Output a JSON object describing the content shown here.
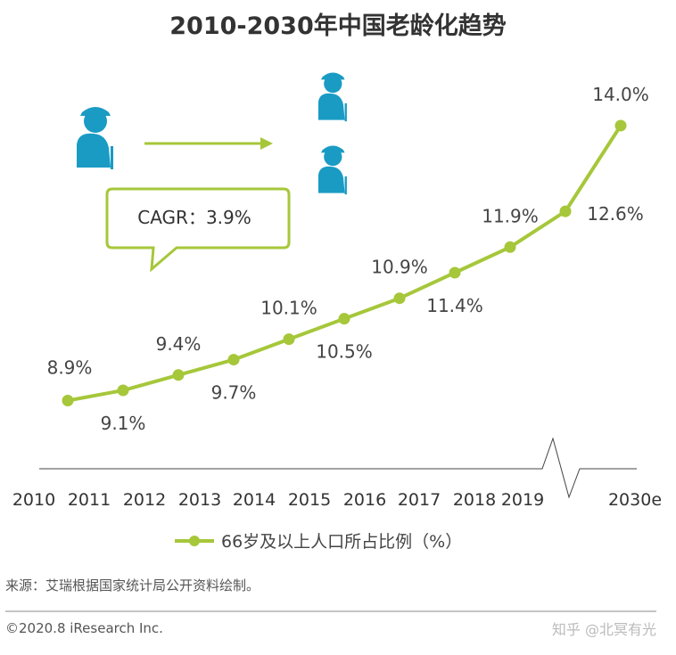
{
  "chart_data": {
    "type": "line",
    "title": "2010-2030年中国老龄化趋势",
    "categories": [
      "2010",
      "2011",
      "2012",
      "2013",
      "2014",
      "2015",
      "2016",
      "2017",
      "2018",
      "2019",
      "2030e"
    ],
    "series": [
      {
        "name": "66岁及以上人口所占比例（%）",
        "values": [
          8.9,
          9.1,
          9.4,
          9.7,
          10.1,
          10.5,
          10.9,
          11.4,
          11.9,
          12.6,
          14.0
        ],
        "labels": [
          "8.9%",
          "9.1%",
          "9.4%",
          "9.7%",
          "10.1%",
          "10.5%",
          "10.9%",
          "11.4%",
          "11.9%",
          "12.6%",
          "14.0%"
        ]
      }
    ],
    "annotation": "CAGR：3.9%",
    "axis_break": "between 2019 and 2030e",
    "grid": false,
    "legend": "bottom-center",
    "line_color": "#a6c73a",
    "icon_color": "#1a9bc4"
  },
  "footer": {
    "source": "来源：艾瑞根据国家统计局公开资料绘制。",
    "copyright": "©2020.8 iResearch Inc.",
    "watermark": "知乎 @北冥有光"
  }
}
